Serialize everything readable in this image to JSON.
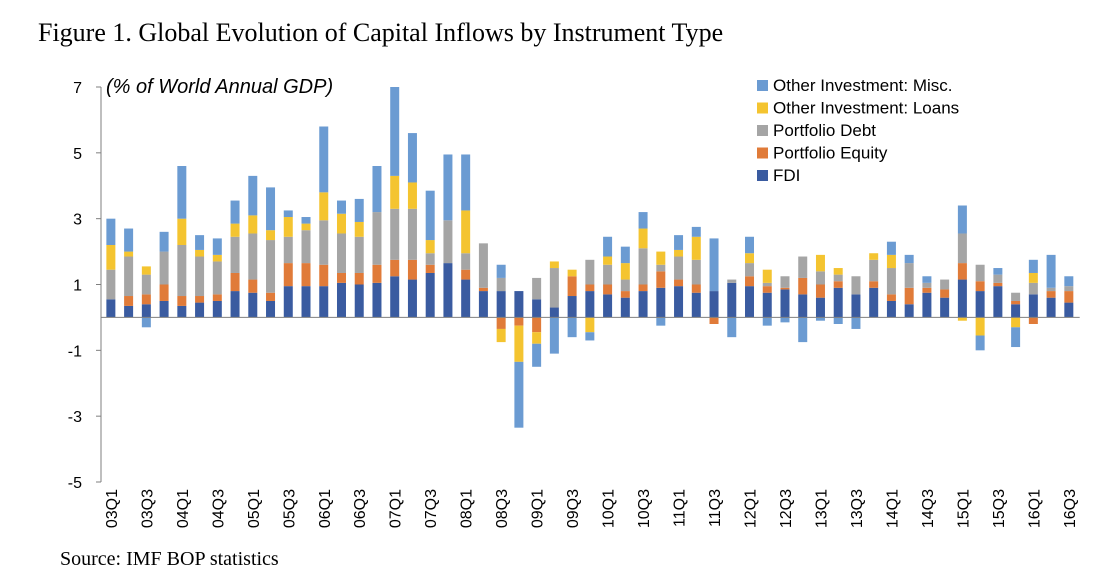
{
  "title": "Figure 1. Global Evolution of Capital Inflows by Instrument Type",
  "source": "Source: IMF BOP statistics",
  "chart_data": {
    "type": "bar",
    "stacked": true,
    "ylabel": "(% of World Annual GDP)",
    "ylim": [
      -5,
      7
    ],
    "yticks": [
      -5,
      -3,
      -1,
      1,
      3,
      5,
      7
    ],
    "grid": false,
    "legend_position": "top-right",
    "categories": [
      "03Q1",
      "03Q2",
      "03Q3",
      "03Q4",
      "04Q1",
      "04Q2",
      "04Q3",
      "04Q4",
      "05Q1",
      "05Q2",
      "05Q3",
      "05Q4",
      "06Q1",
      "06Q2",
      "06Q3",
      "06Q4",
      "07Q1",
      "07Q2",
      "07Q3",
      "07Q4",
      "08Q1",
      "08Q2",
      "08Q3",
      "08Q4",
      "09Q1",
      "09Q2",
      "09Q3",
      "09Q4",
      "10Q1",
      "10Q2",
      "10Q3",
      "10Q4",
      "11Q1",
      "11Q2",
      "11Q3",
      "11Q4",
      "12Q1",
      "12Q2",
      "12Q3",
      "12Q4",
      "13Q1",
      "13Q2",
      "13Q3",
      "13Q4",
      "14Q1",
      "14Q2",
      "14Q3",
      "14Q4",
      "15Q1",
      "15Q2",
      "15Q3",
      "15Q4",
      "16Q1",
      "16Q2",
      "16Q3"
    ],
    "xtick_labels": [
      "03Q1",
      "03Q3",
      "04Q1",
      "04Q3",
      "05Q1",
      "05Q3",
      "06Q1",
      "06Q3",
      "07Q1",
      "07Q3",
      "08Q1",
      "08Q3",
      "09Q1",
      "09Q3",
      "10Q1",
      "10Q3",
      "11Q1",
      "11Q3",
      "12Q1",
      "12Q3",
      "13Q1",
      "13Q3",
      "14Q1",
      "14Q3",
      "15Q1",
      "15Q3",
      "16Q1",
      "16Q3"
    ],
    "series": [
      {
        "name": "FDI",
        "color": "#3a5ba0",
        "values": [
          0.55,
          0.35,
          0.4,
          0.5,
          0.35,
          0.45,
          0.5,
          0.8,
          0.75,
          0.5,
          0.95,
          0.95,
          0.95,
          1.05,
          1.0,
          1.05,
          1.25,
          1.15,
          1.35,
          1.65,
          1.15,
          0.8,
          0.8,
          0.8,
          0.55,
          0.3,
          0.65,
          0.8,
          0.7,
          0.6,
          0.8,
          0.9,
          0.95,
          0.75,
          0.8,
          1.05,
          0.95,
          0.75,
          0.85,
          0.7,
          0.6,
          0.9,
          0.7,
          0.9,
          0.5,
          0.4,
          0.75,
          0.6,
          1.15,
          0.8,
          0.95,
          0.4,
          0.7,
          0.6,
          0.45
        ]
      },
      {
        "name": "Portfolio Equity",
        "color": "#e07b39",
        "values": [
          0.0,
          0.3,
          0.3,
          0.5,
          0.3,
          0.2,
          0.2,
          0.55,
          0.4,
          0.25,
          0.7,
          0.7,
          0.65,
          0.3,
          0.35,
          0.55,
          0.5,
          0.6,
          0.25,
          0.0,
          0.3,
          0.1,
          -0.35,
          -0.25,
          -0.45,
          0.0,
          0.6,
          0.2,
          0.3,
          0.2,
          0.2,
          0.5,
          0.2,
          0.25,
          -0.2,
          0.0,
          0.3,
          0.2,
          0.05,
          0.5,
          0.4,
          0.2,
          0.0,
          0.2,
          0.2,
          0.5,
          0.15,
          0.25,
          0.5,
          0.3,
          0.1,
          0.1,
          -0.2,
          0.2,
          0.35
        ]
      },
      {
        "name": "Portfolio Debt",
        "color": "#a5a5a5",
        "values": [
          0.9,
          1.2,
          0.6,
          1.0,
          1.55,
          1.2,
          1.0,
          1.1,
          1.4,
          1.6,
          0.8,
          1.0,
          1.35,
          1.2,
          1.1,
          1.6,
          1.55,
          1.55,
          0.35,
          1.3,
          0.5,
          1.35,
          0.4,
          0.0,
          0.65,
          1.2,
          0.0,
          0.75,
          0.6,
          0.35,
          1.1,
          0.2,
          0.7,
          0.75,
          0.0,
          0.1,
          0.4,
          0.1,
          0.35,
          0.65,
          0.4,
          0.2,
          0.55,
          0.65,
          0.8,
          0.75,
          0.15,
          0.3,
          0.9,
          0.5,
          0.25,
          0.25,
          0.35,
          0.1,
          0.15
        ]
      },
      {
        "name": "Other Investment: Loans",
        "color": "#f4c430",
        "values": [
          0.75,
          0.15,
          0.25,
          0.0,
          0.8,
          0.2,
          0.2,
          0.4,
          0.55,
          0.3,
          0.6,
          0.2,
          0.85,
          0.6,
          0.45,
          0.0,
          1.0,
          0.8,
          0.4,
          0.0,
          1.3,
          0.0,
          -0.4,
          -1.1,
          -0.35,
          0.2,
          0.2,
          -0.45,
          0.25,
          0.5,
          0.6,
          0.4,
          0.2,
          0.7,
          0.0,
          0.0,
          0.3,
          0.4,
          0.0,
          0.0,
          0.5,
          0.2,
          0.0,
          0.2,
          0.4,
          0.0,
          0.0,
          0.0,
          -0.1,
          -0.55,
          0.0,
          -0.3,
          0.3,
          0.0,
          0.0
        ]
      },
      {
        "name": "Other Investment: Misc.",
        "color": "#6b9bd2",
        "values": [
          0.8,
          0.7,
          -0.3,
          0.6,
          1.6,
          0.45,
          0.5,
          0.7,
          1.2,
          1.3,
          0.2,
          0.2,
          2.0,
          0.4,
          0.7,
          1.4,
          2.7,
          1.5,
          1.5,
          2.0,
          1.7,
          0.0,
          0.4,
          -2.0,
          -0.7,
          -1.1,
          -0.6,
          -0.25,
          0.6,
          0.5,
          0.5,
          -0.25,
          0.45,
          0.3,
          1.6,
          -0.6,
          0.5,
          -0.25,
          -0.15,
          -0.75,
          -0.1,
          -0.2,
          -0.35,
          0.0,
          0.4,
          0.25,
          0.2,
          0.0,
          0.85,
          -0.45,
          0.2,
          -0.6,
          0.4,
          1.0,
          0.3
        ]
      }
    ]
  }
}
